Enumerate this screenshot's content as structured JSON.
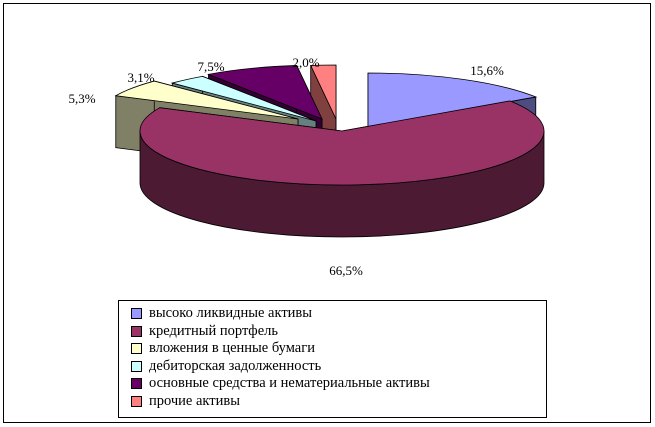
{
  "chart_data": {
    "type": "pie",
    "style": "3d-exploded",
    "categories": [
      "высоко ликвидные активы",
      "кредитный портфель",
      "вложения в ценные бумаги",
      "дебиторская задолженность",
      "основные средства и нематериальные активы",
      "прочие активы"
    ],
    "values": [
      15.6,
      66.5,
      5.3,
      3.1,
      7.5,
      2.0
    ],
    "value_labels": [
      "15,6%",
      "66,5%",
      "5,3%",
      "3,1%",
      "7,5%",
      "2,0%"
    ],
    "colors": [
      "#9999ff",
      "#993366",
      "#ffffcc",
      "#ccffff",
      "#660066",
      "#ff8080"
    ],
    "legend_position": "bottom"
  }
}
